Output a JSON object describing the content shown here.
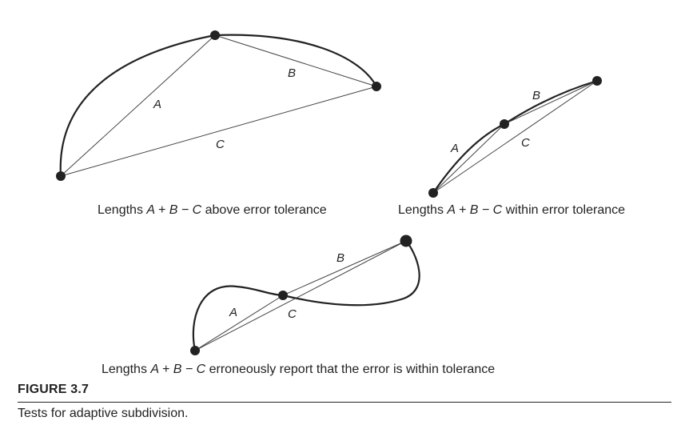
{
  "diagrams": [
    {
      "caption_prefix": "Lengths ",
      "caption_expr": "A + B − C",
      "caption_suffix": " above error tolerance",
      "segment_labels": {
        "a": "A",
        "b": "B",
        "c": "C"
      }
    },
    {
      "caption_prefix": "Lengths ",
      "caption_expr": "A + B − C",
      "caption_suffix": " within error tolerance",
      "segment_labels": {
        "a": "A",
        "b": "B",
        "c": "C"
      }
    },
    {
      "caption_prefix": "Lengths ",
      "caption_expr": "A + B − C",
      "caption_suffix": " erroneously report that the error is within tolerance",
      "segment_labels": {
        "a": "A",
        "b": "B",
        "c": "C"
      }
    }
  ],
  "figure": {
    "label": "FIGURE 3.7",
    "caption": "Tests for adaptive subdivision."
  }
}
